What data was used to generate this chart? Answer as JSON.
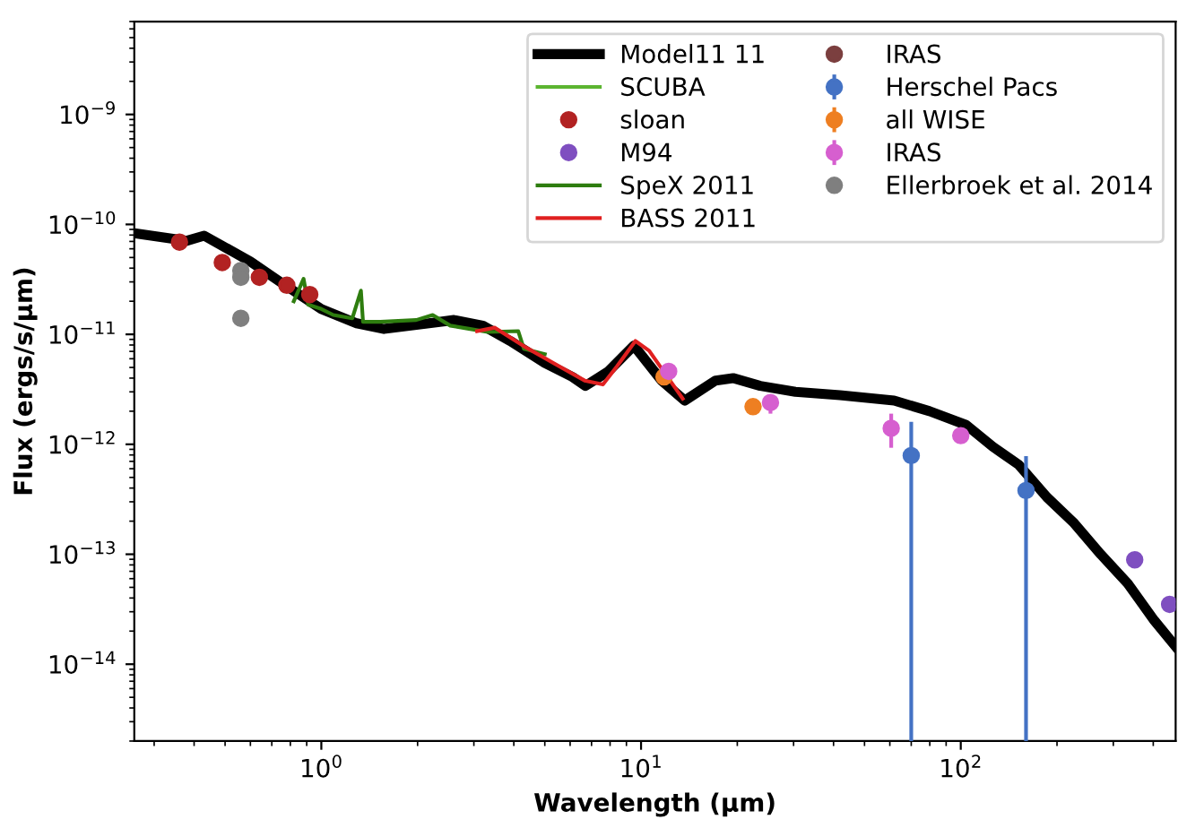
{
  "chart_data": {
    "type": "line",
    "xlabel": "Wavelength (μm)",
    "ylabel": "Flux (ergs/s/μm)",
    "log": "xy",
    "grid": false,
    "legend": "top right",
    "xlim": [
      0.26,
      470
    ],
    "ylim": [
      2e-15,
      7e-09
    ],
    "xticks": [
      {
        "value": 1,
        "label": "10$^{0}$"
      },
      {
        "value": 10,
        "label": "10$^{1}$"
      },
      {
        "value": 100,
        "label": "10$^{2}$"
      }
    ],
    "yticks": [
      {
        "value": 1e-14,
        "label": "10$^{−14}$"
      },
      {
        "value": 1e-13,
        "label": "10$^{−13}$"
      },
      {
        "value": 1e-12,
        "label": "10$^{−12}$"
      },
      {
        "value": 1e-11,
        "label": "10$^{−11}$"
      },
      {
        "value": 1e-10,
        "label": "10$^{−10}$"
      },
      {
        "value": 1e-09,
        "label": "10$^{−9}$"
      }
    ],
    "series": [
      {
        "name": "Model11 11",
        "color": "#000000",
        "x": [
          0.26,
          0.38,
          0.43,
          0.6,
          0.77,
          1.0,
          1.29,
          1.57,
          2.17,
          2.6,
          3.2,
          3.9,
          5.0,
          6.1,
          6.7,
          7.9,
          9.5,
          11.6,
          13.7,
          17.1,
          19.4,
          23.6,
          30.4,
          41.9,
          61.9,
          79.9,
          104,
          126,
          152,
          186,
          225,
          274,
          333,
          403,
          470
        ],
        "values": [
          8.3e-11,
          7.1e-11,
          7.9e-11,
          4.6e-11,
          2.8e-11,
          1.7e-11,
          1.26e-11,
          1.12e-11,
          1.26e-11,
          1.35e-11,
          1.2e-11,
          8.7e-12,
          5.5e-12,
          4.1e-12,
          3.4e-12,
          4.6e-12,
          7.9e-12,
          3.8e-12,
          2.5e-12,
          3.8e-12,
          4e-12,
          3.4e-12,
          3e-12,
          2.8e-12,
          2.5e-12,
          2e-12,
          1.5e-12,
          9.5e-13,
          6.5e-13,
          3.3e-13,
          1.95e-13,
          1e-13,
          5.4e-14,
          2.5e-14,
          1.45e-14
        ]
      },
      {
        "name": "SCUBA",
        "type": "line",
        "color": "#5cb531"
      },
      {
        "name": "sloan",
        "type": "scatter",
        "color": "#b22222",
        "x": [
          0.36,
          0.49,
          0.64,
          0.78,
          0.92
        ],
        "values": [
          6.9e-11,
          4.5e-11,
          3.3e-11,
          2.8e-11,
          2.3e-11
        ]
      },
      {
        "name": "M94",
        "type": "scatter",
        "color": "#7f4fc0",
        "x": [
          350,
          450
        ],
        "values": [
          8.9e-14,
          3.5e-14
        ]
      },
      {
        "name": "SpeX 2011",
        "type": "line",
        "color": "#2e7d0f",
        "x": [
          0.82,
          0.88,
          0.91,
          1.0,
          1.09,
          1.25,
          1.33,
          1.35,
          1.53,
          1.98,
          2.23,
          2.53,
          2.92,
          3.32,
          4.13,
          4.3,
          5.0
        ],
        "values": [
          2e-11,
          3.2e-11,
          1.86e-11,
          1.7e-11,
          1.5e-11,
          1.4e-11,
          2.5e-11,
          1.3e-11,
          1.3e-11,
          1.35e-11,
          1.5e-11,
          1.2e-11,
          1.12e-11,
          1.05e-11,
          1.07e-11,
          7.4e-12,
          6.6e-12
        ]
      },
      {
        "name": "BASS 2011",
        "type": "line",
        "color": "#e02020",
        "x": [
          3.07,
          3.49,
          4.3,
          5.56,
          6.66,
          7.6,
          8.4,
          9.6,
          10.6,
          12.1,
          13.5
        ],
        "values": [
          1.07e-11,
          1.15e-11,
          7.8e-12,
          5.1e-12,
          3.8e-12,
          3.5e-12,
          5.1e-12,
          8.7e-12,
          7.1e-12,
          4.1e-12,
          2.6e-12
        ]
      },
      {
        "name": "IRAS",
        "type": "scatter",
        "color": "#7b3f3f"
      },
      {
        "name": "Herschel Pacs",
        "type": "scatter",
        "color": "#4472c4",
        "x": [
          70,
          160
        ],
        "values": [
          7.9e-13,
          3.8e-13
        ],
        "errors": [
          [
            2e-15,
            1.6e-12
          ],
          [
            2e-15,
            7.8e-13
          ]
        ]
      },
      {
        "name": "all WISE",
        "type": "scatter",
        "color": "#ee7f22",
        "x": [
          11.8,
          22.4
        ],
        "values": [
          4.1e-12,
          2.2e-12
        ],
        "errors": [
          null,
          null
        ]
      },
      {
        "name": "IRAS",
        "type": "scatter",
        "color": "#d65fcf",
        "x": [
          12.2,
          25.4,
          60.6,
          100
        ],
        "values": [
          4.6e-12,
          2.4e-12,
          1.4e-12,
          1.2e-12
        ],
        "errors": [
          null,
          [
            1.9e-12,
            2.8e-12
          ],
          [
            9.3e-13,
            1.9e-12
          ],
          null
        ]
      },
      {
        "name": "Ellerbroek et al. 2014",
        "type": "scatter",
        "color": "#7f7f7f",
        "x": [
          0.56,
          0.56,
          0.56
        ],
        "values": [
          3.8e-11,
          3.3e-11,
          1.4e-11
        ]
      }
    ]
  }
}
